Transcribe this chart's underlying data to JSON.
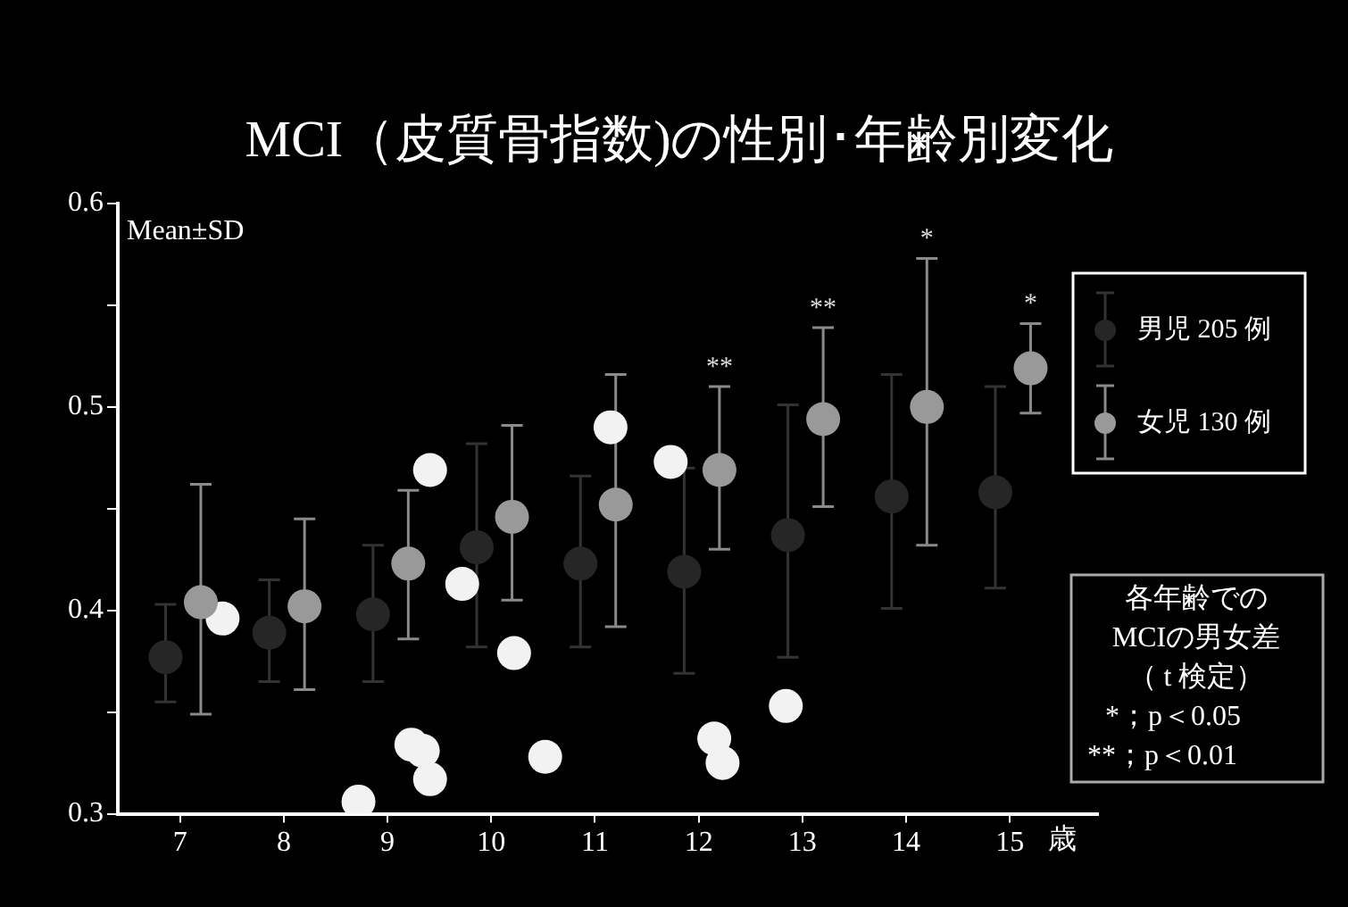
{
  "chart_data": {
    "type": "scatter",
    "title": "MCI（皮質骨指数)の性別･年齢別変化",
    "xlabel": "歳",
    "xlim": [
      6.4,
      15.85
    ],
    "xticks": [
      7,
      8,
      9,
      10,
      11,
      12,
      13,
      14,
      15
    ],
    "ylim": [
      0.3,
      0.6
    ],
    "yticks": [
      0.3,
      {
        "value": 0.35,
        "label": null
      },
      0.4,
      {
        "value": 0.45,
        "label": null
      },
      0.5,
      {
        "value": 0.55,
        "label": null
      },
      0.6
    ],
    "marker": "circle",
    "legend": "right",
    "grid": false,
    "series": [
      {
        "name": "男児 205 例",
        "color": "#262626",
        "x": [
          6.86,
          7.86,
          8.86,
          9.86,
          10.86,
          11.86,
          12.86,
          13.86,
          14.86
        ],
        "values": [
          0.377,
          0.389,
          0.398,
          0.431,
          0.423,
          0.419,
          0.437,
          0.456,
          0.458
        ],
        "errors": [
          [
            0.355,
            0.403
          ],
          [
            0.365,
            0.415
          ],
          [
            0.365,
            0.432
          ],
          [
            0.382,
            0.482
          ],
          [
            0.382,
            0.466
          ],
          [
            0.369,
            0.47
          ],
          [
            0.377,
            0.501
          ],
          [
            0.401,
            0.516
          ],
          [
            0.411,
            0.51
          ]
        ]
      },
      {
        "name": "女児 130 例",
        "color": "#999999",
        "x": [
          7.2,
          8.2,
          9.2,
          10.2,
          11.2,
          12.2,
          13.2,
          14.2,
          15.2
        ],
        "values": [
          0.404,
          0.402,
          0.423,
          0.446,
          0.452,
          0.469,
          0.494,
          0.5,
          0.519
        ],
        "errors": [
          [
            0.349,
            0.462
          ],
          [
            0.361,
            0.445
          ],
          [
            0.386,
            0.459
          ],
          [
            0.405,
            0.491
          ],
          [
            0.392,
            0.516
          ],
          [
            0.43,
            0.51
          ],
          [
            0.451,
            0.539
          ],
          [
            0.432,
            0.573
          ],
          [
            0.497,
            0.541
          ]
        ]
      },
      {
        "color": "#f2f2f2",
        "x": [
          7.41,
          8.72,
          9.23,
          9.34,
          9.41,
          9.41,
          9.72,
          10.22,
          10.52,
          11.15,
          11.73,
          12.15,
          12.23,
          12.84
        ],
        "values": [
          0.396,
          0.306,
          0.334,
          0.331,
          0.317,
          0.469,
          0.413,
          0.379,
          0.328,
          0.49,
          0.473,
          0.337,
          0.325,
          0.353
        ]
      }
    ],
    "annotations": [
      "Mean±SD",
      "各年齢での",
      "MCIの男女差",
      "（ t 検定）",
      "*；p＜0.05",
      "**；p＜0.01",
      {
        "text": "**",
        "x": 12.2,
        "y": 0.51
      },
      {
        "text": "**",
        "x": 13.2,
        "y": 0.539
      },
      {
        "text": "*",
        "x": 14.2,
        "y": 0.573
      },
      {
        "text": "*",
        "x": 15.2,
        "y": 0.541
      }
    ]
  }
}
